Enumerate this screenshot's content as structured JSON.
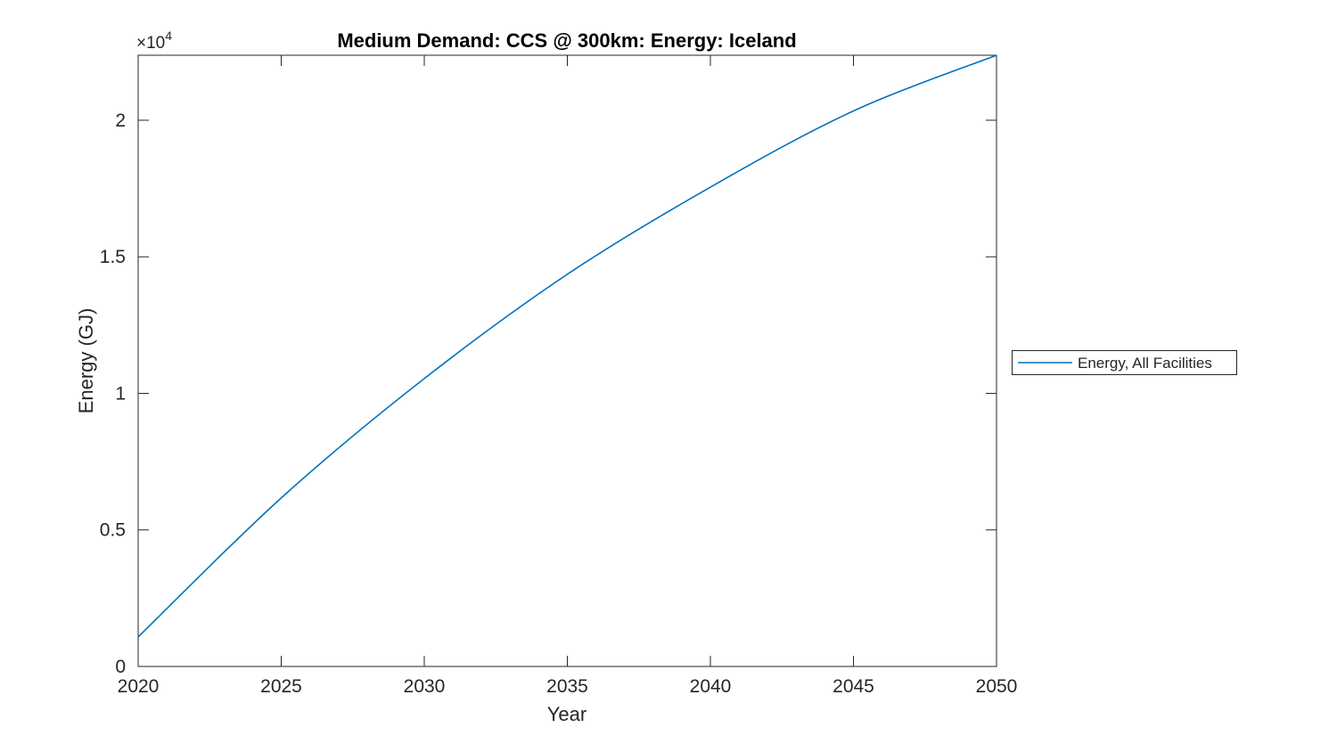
{
  "figure": {
    "title": "Medium Demand: CCS @ 300km: Energy: Iceland",
    "xlabel": "Year",
    "ylabel": "Energy (GJ)",
    "exponent_base": "×10",
    "exponent_power": "4"
  },
  "legend": {
    "items": [
      {
        "label": "Energy, All Facilities",
        "color": "#0072BD"
      }
    ]
  },
  "colors": {
    "line": "#0072BD",
    "axis": "#262626",
    "text": "#262626",
    "title": "#000000",
    "background": "#ffffff",
    "legend_border": "#262626"
  },
  "chart_data": {
    "type": "line",
    "title": "Medium Demand: CCS @ 300km: Energy: Iceland",
    "xlabel": "Year",
    "ylabel": "Energy (GJ)",
    "y_axis_exponent": "×10^4",
    "xlim": [
      2020,
      2050
    ],
    "ylim": [
      0,
      22380
    ],
    "xticks": [
      2020,
      2025,
      2030,
      2035,
      2040,
      2045,
      2050
    ],
    "xtick_labels": [
      "2020",
      "2025",
      "2030",
      "2035",
      "2040",
      "2045",
      "2050"
    ],
    "yticks": [
      0,
      5000,
      10000,
      15000,
      20000
    ],
    "ytick_labels": [
      "0",
      "0.5",
      "1",
      "1.5",
      "2"
    ],
    "grid": false,
    "legend_position": "outside-right-middle",
    "series": [
      {
        "name": "Energy, All Facilities",
        "color": "#0072BD",
        "x": [
          2020,
          2025,
          2030,
          2035,
          2040,
          2045,
          2050
        ],
        "y": [
          1080,
          6170,
          10540,
          14360,
          17550,
          20340,
          22380
        ]
      }
    ]
  }
}
